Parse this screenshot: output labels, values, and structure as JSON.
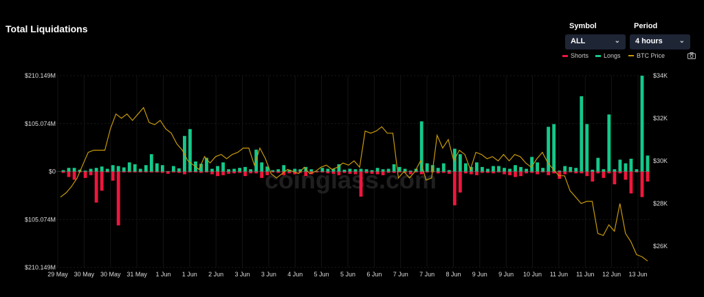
{
  "title": "Total Liquidations",
  "controls": {
    "symbol_label": "Symbol",
    "symbol_value": "ALL",
    "period_label": "Period",
    "period_value": "4 hours"
  },
  "legend": {
    "shorts": "Shorts",
    "longs": "Longs",
    "price": "BTC Price"
  },
  "watermark": "coinglass.com",
  "icons": {
    "chevron": "chevron-down-icon",
    "camera": "camera-icon"
  },
  "colors": {
    "shorts": "#f0163d",
    "longs": "#14c98a",
    "price": "#c99a0a"
  },
  "chart_data": {
    "type": "bar",
    "x_labels": [
      "29 May",
      "30 May",
      "30 May",
      "31 May",
      "1 Jun",
      "1 Jun",
      "2 Jun",
      "3 Jun",
      "3 Jun",
      "4 Jun",
      "5 Jun",
      "5 Jun",
      "6 Jun",
      "7 Jun",
      "7 Jun",
      "8 Jun",
      "9 Jun",
      "9 Jun",
      "10 Jun",
      "11 Jun",
      "11 Jun",
      "12 Jun",
      "13 Jun"
    ],
    "y_left_ticks": [
      "$210.149M",
      "$105.074M",
      "$0",
      "$105.074M",
      "$210.149M"
    ],
    "y_right_ticks": [
      "$34K",
      "$32K",
      "$30K",
      "$28K",
      "$26K"
    ],
    "y_left_range": [
      -210.149,
      210.149
    ],
    "y_right_range": [
      25,
      34
    ],
    "grid": true,
    "legend_position": "top-right",
    "series": [
      {
        "name": "Longs",
        "values": [
          3,
          8,
          8,
          4,
          2,
          6,
          8,
          11,
          6,
          14,
          12,
          9,
          20,
          16,
          6,
          14,
          38,
          18,
          14,
          1,
          12,
          7,
          78,
          93,
          22,
          17,
          30,
          6,
          12,
          20,
          5,
          6,
          8,
          10,
          5,
          48,
          20,
          11,
          3,
          5,
          14,
          4,
          6,
          5,
          10,
          5,
          1,
          8,
          6,
          6,
          16,
          4,
          6,
          5,
          6,
          5,
          3,
          8,
          5,
          6,
          16,
          10,
          6,
          2,
          6,
          110,
          18,
          14,
          8,
          18,
          3,
          50,
          38,
          18,
          10,
          20,
          10,
          6,
          12,
          12,
          8,
          6,
          14,
          10,
          6,
          32,
          20,
          8,
          98,
          104,
          2,
          12,
          10,
          8,
          165,
          104,
          4,
          30,
          5,
          125,
          5,
          26,
          18,
          28,
          5,
          210,
          35
        ]
      },
      {
        "name": "Shorts",
        "values": [
          3,
          12,
          18,
          2,
          14,
          8,
          68,
          42,
          2,
          20,
          118,
          2,
          2,
          2,
          2,
          2,
          2,
          2,
          3,
          5,
          2,
          3,
          6,
          2,
          2,
          3,
          2,
          6,
          10,
          8,
          5,
          4,
          3,
          10,
          4,
          4,
          14,
          8,
          2,
          3,
          8,
          4,
          6,
          3,
          10,
          6,
          2,
          2,
          4,
          5,
          8,
          3,
          5,
          6,
          55,
          4,
          5,
          6,
          8,
          3,
          3,
          2,
          3,
          6,
          2,
          6,
          2,
          2,
          4,
          3,
          5,
          74,
          46,
          4,
          6,
          8,
          3,
          3,
          4,
          2,
          6,
          8,
          12,
          10,
          4,
          3,
          6,
          2,
          8,
          4,
          16,
          6,
          2,
          4,
          4,
          10,
          22,
          4,
          14,
          4,
          28,
          4,
          18,
          48,
          2,
          56,
          22
        ]
      },
      {
        "name": "BTC Price",
        "values": [
          28.3,
          28.5,
          28.8,
          29.2,
          29.8,
          30.4,
          30.5,
          30.5,
          30.5,
          31.5,
          32.2,
          32.0,
          32.2,
          31.9,
          32.2,
          32.5,
          31.8,
          31.7,
          31.9,
          31.5,
          31.3,
          30.8,
          30.5,
          30.0,
          29.8,
          29.6,
          30.2,
          29.9,
          30.2,
          30.3,
          30.1,
          30.3,
          30.4,
          30.6,
          30.6,
          29.8,
          30.6,
          30.1,
          29.4,
          29.2,
          29.4,
          29.6,
          29.5,
          29.4,
          29.7,
          29.4,
          29.5,
          29.7,
          29.8,
          29.6,
          29.7,
          29.9,
          29.8,
          30.0,
          29.7,
          31.4,
          31.3,
          31.4,
          31.6,
          31.3,
          31.3,
          29.2,
          29.5,
          29.2,
          29.5,
          30.0,
          29.1,
          29.2,
          31.2,
          30.6,
          31.0,
          30.0,
          30.5,
          30.3,
          29.6,
          30.4,
          30.3,
          30.1,
          30.2,
          30.0,
          30.3,
          30.0,
          30.3,
          30.2,
          29.9,
          29.7,
          30.1,
          30.4,
          29.9,
          29.6,
          29.3,
          29.3,
          28.6,
          28.3,
          28.0,
          28.1,
          28.1,
          26.6,
          26.5,
          27.0,
          26.7,
          28.0,
          26.6,
          26.2,
          25.6,
          25.5,
          25.3
        ]
      }
    ]
  }
}
